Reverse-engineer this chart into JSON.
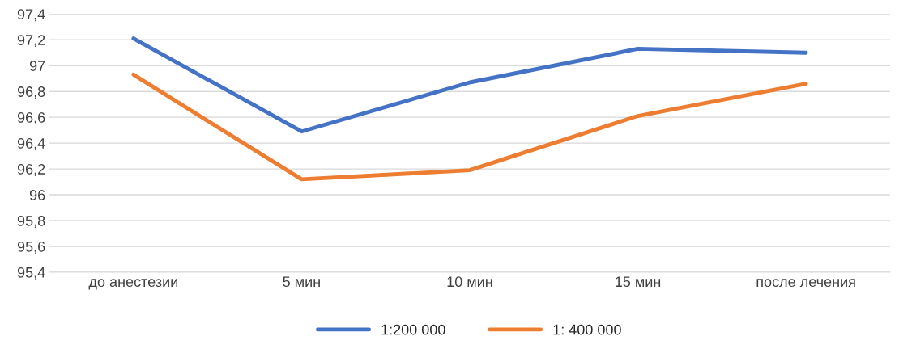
{
  "chart_data": {
    "type": "line",
    "categories": [
      "до анестезии",
      "5 мин",
      "10 мин",
      "15 мин",
      "после лечения"
    ],
    "series": [
      {
        "name": "1:200 000",
        "color": "#4472c4",
        "values": [
          97.21,
          96.49,
          96.87,
          97.13,
          97.1
        ]
      },
      {
        "name": "1: 400 000",
        "color": "#ed7d31",
        "values": [
          96.93,
          96.12,
          96.19,
          96.61,
          96.86
        ]
      }
    ],
    "ylim": [
      95.4,
      97.4
    ],
    "yticks": [
      {
        "value": 95.4,
        "label": "95,4"
      },
      {
        "value": 95.6,
        "label": "95,6"
      },
      {
        "value": 95.8,
        "label": "95,8"
      },
      {
        "value": 96,
        "label": "96"
      },
      {
        "value": 96.2,
        "label": "96,2"
      },
      {
        "value": 96.4,
        "label": "96,4"
      },
      {
        "value": 96.6,
        "label": "96,6"
      },
      {
        "value": 96.8,
        "label": "96,8"
      },
      {
        "value": 97,
        "label": "97"
      },
      {
        "value": 97.2,
        "label": "97,2"
      },
      {
        "value": 97.4,
        "label": "97,4"
      }
    ],
    "grid": "y",
    "legend": "bottom",
    "marker": "none",
    "line_style": "solid"
  }
}
